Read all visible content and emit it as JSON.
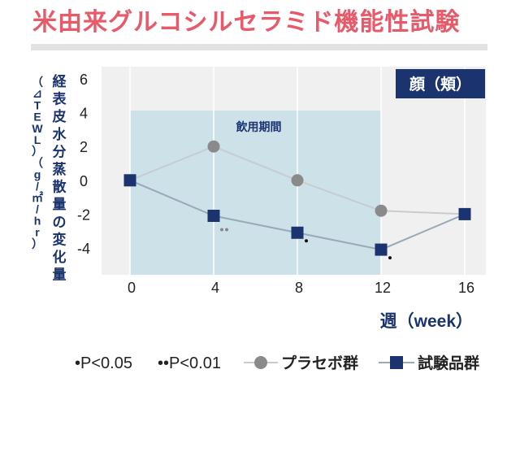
{
  "title": "米由来グルコシルセラミド機能性試験",
  "chart_data": {
    "type": "line",
    "ylabel": "経表皮水分蒸散量の変化量",
    "ylabel_sub": "（⊿TEWL）（g/㎡/hr）",
    "xlabel": "週（week）",
    "region_label": "顔（頬）",
    "shaded_period": {
      "label": "飲用期間",
      "x": [
        0,
        12
      ]
    },
    "x": [
      0,
      4,
      8,
      12,
      16
    ],
    "xticks": [
      "0",
      "4",
      "8",
      "12",
      "16"
    ],
    "yticks": [
      "6",
      "4",
      "2",
      "0",
      "-2",
      "-4"
    ],
    "ylim": [
      -5.5,
      6.5
    ],
    "xlim": [
      0,
      16
    ],
    "grid": "vertical",
    "series": [
      {
        "name": "プラセボ群",
        "marker": "circle",
        "color": "#8a8a8a",
        "line_color": "#c8ccd0",
        "values": [
          0,
          2,
          0,
          -1.8,
          -2
        ]
      },
      {
        "name": "試験品群",
        "marker": "square",
        "color": "#1b3470",
        "line_color": "#9aa8b8",
        "values": [
          0,
          -2.1,
          -3.1,
          -4.1,
          -2
        ]
      }
    ],
    "significance_marks": [
      {
        "x": 4,
        "y": -2.1,
        "symbol": "••"
      },
      {
        "x": 8,
        "y": -3.1,
        "symbol": "•"
      },
      {
        "x": 12,
        "y": -4.1,
        "symbol": "•"
      }
    ],
    "legend": {
      "position": "bottom",
      "items": [
        "•P<0.05",
        "••P<0.01",
        "プラセボ群",
        "試験品群"
      ]
    }
  }
}
